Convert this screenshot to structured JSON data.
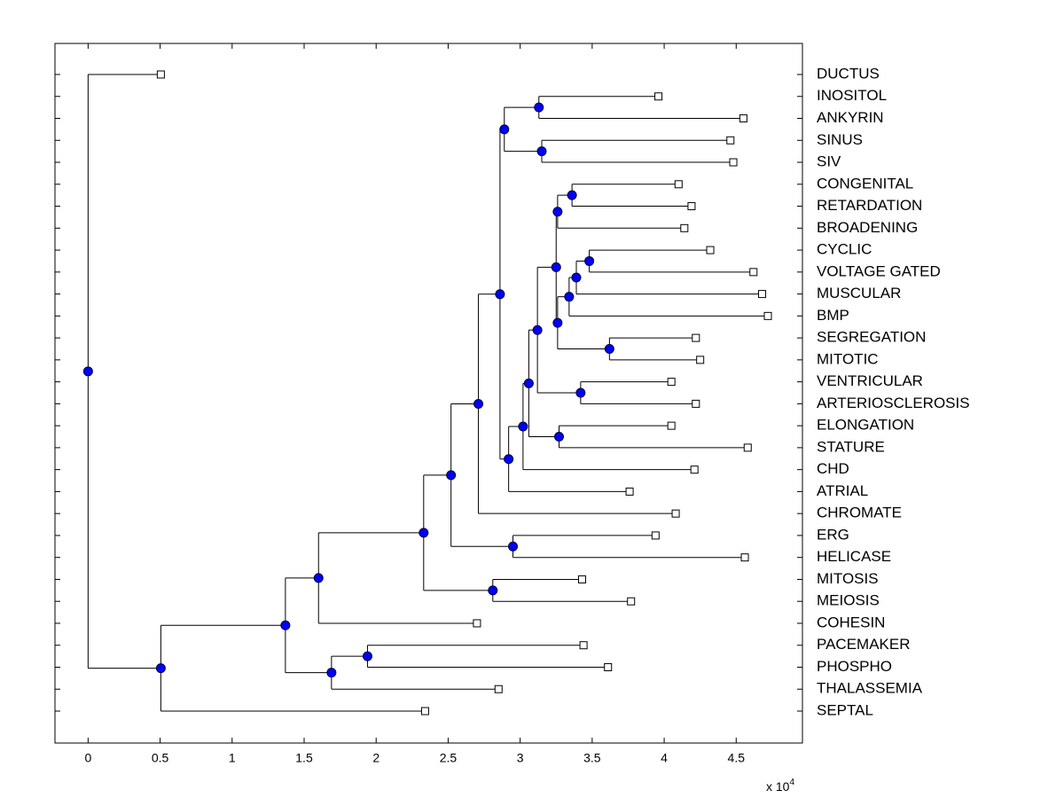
{
  "chart_data": {
    "type": "dendrogram",
    "xlim": [
      -0.23,
      4.96
    ],
    "xticks": [
      0,
      0.5,
      1,
      1.5,
      2,
      2.5,
      3,
      3.5,
      4,
      4.5
    ],
    "x_multiplier": {
      "base": "x 10",
      "exponent": "4"
    },
    "node_color": "#0000ff",
    "tree": {
      "x": 0,
      "children": [
        {
          "label": "DUCTUS",
          "x": 0.505
        },
        {
          "x": 0.505,
          "children": [
            {
              "x": 1.37,
              "children": [
                {
                  "x": 1.6,
                  "children": [
                    {
                      "x": 2.33,
                      "children": [
                        {
                          "x": 2.52,
                          "children": [
                            {
                              "x": 2.71,
                              "children": [
                                {
                                  "x": 2.86,
                                  "children": [
                                    {
                                      "x": 2.89,
                                      "children": [
                                        {
                                          "x": 3.13,
                                          "children": [
                                            {
                                              "label": "INOSITOL",
                                              "x": 3.96
                                            },
                                            {
                                              "label": "ANKYRIN",
                                              "x": 4.55
                                            }
                                          ]
                                        },
                                        {
                                          "x": 3.15,
                                          "children": [
                                            {
                                              "label": "SINUS",
                                              "x": 4.46
                                            },
                                            {
                                              "label": "SIV",
                                              "x": 4.48
                                            }
                                          ]
                                        }
                                      ]
                                    },
                                    {
                                      "x": 2.92,
                                      "children": [
                                        {
                                          "x": 3.02,
                                          "children": [
                                            {
                                              "x": 3.06,
                                              "children": [
                                                {
                                                  "x": 3.12,
                                                  "children": [
                                                    {
                                                      "x": 3.25,
                                                      "children": [
                                                        {
                                                          "x": 3.26,
                                                          "children": [
                                                            {
                                                              "x": 3.36,
                                                              "children": [
                                                                {
                                                                  "label": "CONGENITAL",
                                                                  "x": 4.1
                                                                },
                                                                {
                                                                  "label": "RETARDATION",
                                                                  "x": 4.19
                                                                }
                                                              ]
                                                            },
                                                            {
                                                              "label": "BROADENING",
                                                              "x": 4.14
                                                            }
                                                          ]
                                                        },
                                                        {
                                                          "x": 3.26,
                                                          "children": [
                                                            {
                                                              "x": 3.34,
                                                              "children": [
                                                                {
                                                                  "x": 3.39,
                                                                  "children": [
                                                                    {
                                                                      "x": 3.48,
                                                                      "children": [
                                                                        {
                                                                          "label": "CYCLIC",
                                                                          "x": 4.32
                                                                        },
                                                                        {
                                                                          "label": "VOLTAGE GATED",
                                                                          "x": 4.62
                                                                        }
                                                                      ]
                                                                    },
                                                                    {
                                                                      "label": "MUSCULAR",
                                                                      "x": 4.68
                                                                    }
                                                                  ]
                                                                },
                                                                {
                                                                  "label": "BMP",
                                                                  "x": 4.72
                                                                }
                                                              ]
                                                            },
                                                            {
                                                              "x": 3.62,
                                                              "children": [
                                                                {
                                                                  "label": "SEGREGATION",
                                                                  "x": 4.22
                                                                },
                                                                {
                                                                  "label": "MITOTIC",
                                                                  "x": 4.25
                                                                }
                                                              ]
                                                            }
                                                          ]
                                                        }
                                                      ]
                                                    },
                                                    {
                                                      "x": 3.42,
                                                      "children": [
                                                        {
                                                          "label": "VENTRICULAR",
                                                          "x": 4.05
                                                        },
                                                        {
                                                          "label": "ARTERIOSCLEROSIS",
                                                          "x": 4.22
                                                        }
                                                      ]
                                                    }
                                                  ]
                                                },
                                                {
                                                  "x": 3.27,
                                                  "children": [
                                                    {
                                                      "label": "ELONGATION",
                                                      "x": 4.05
                                                    },
                                                    {
                                                      "label": "STATURE",
                                                      "x": 4.58
                                                    }
                                                  ]
                                                }
                                              ]
                                            },
                                            {
                                              "label": "CHD",
                                              "x": 4.21
                                            }
                                          ]
                                        },
                                        {
                                          "label": "ATRIAL",
                                          "x": 3.76
                                        }
                                      ]
                                    }
                                  ]
                                },
                                {
                                  "label": "CHROMATE",
                                  "x": 4.08
                                }
                              ]
                            },
                            {
                              "x": 2.95,
                              "children": [
                                {
                                  "label": "ERG",
                                  "x": 3.94
                                },
                                {
                                  "label": "HELICASE",
                                  "x": 4.56
                                }
                              ]
                            }
                          ]
                        },
                        {
                          "x": 2.81,
                          "children": [
                            {
                              "label": "MITOSIS",
                              "x": 3.43
                            },
                            {
                              "label": "MEIOSIS",
                              "x": 3.77
                            }
                          ]
                        }
                      ]
                    },
                    {
                      "label": "COHESIN",
                      "x": 2.7
                    }
                  ]
                },
                {
                  "x": 1.69,
                  "children": [
                    {
                      "x": 1.94,
                      "children": [
                        {
                          "label": "PACEMAKER",
                          "x": 3.44
                        },
                        {
                          "label": "PHOSPHO",
                          "x": 3.61
                        }
                      ]
                    },
                    {
                      "label": "THALASSEMIA",
                      "x": 2.85
                    }
                  ]
                }
              ]
            },
            {
              "label": "SEPTAL",
              "x": 2.34
            }
          ]
        }
      ]
    }
  }
}
